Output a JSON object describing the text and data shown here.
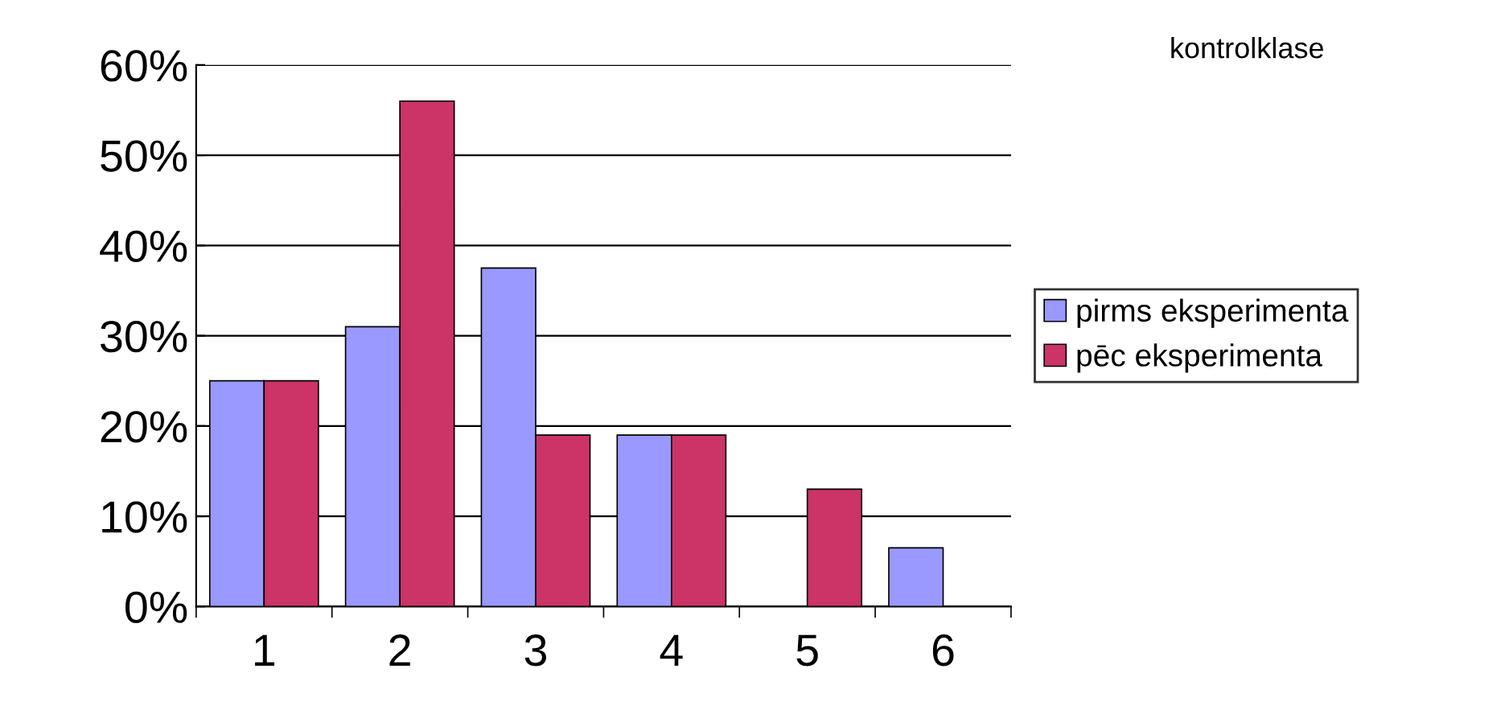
{
  "chart_data": {
    "type": "bar",
    "title": "kontrolklase",
    "categories": [
      "1",
      "2",
      "3",
      "4",
      "5",
      "6"
    ],
    "series": [
      {
        "name": "pirms eksperimenta",
        "color": "#9999ff",
        "values": [
          25,
          31,
          37.5,
          19,
          null,
          6.5
        ]
      },
      {
        "name": "pēc eksperimenta",
        "color": "#cc3366",
        "values": [
          25,
          56,
          19,
          19,
          13,
          null
        ]
      }
    ],
    "ylim": [
      0,
      60
    ],
    "yticks": [
      {
        "value": 0,
        "label": "0%"
      },
      {
        "value": 10,
        "label": "10%"
      },
      {
        "value": 20,
        "label": "20%"
      },
      {
        "value": 30,
        "label": "30%"
      },
      {
        "value": 40,
        "label": "40%"
      },
      {
        "value": 50,
        "label": "50%"
      },
      {
        "value": 60,
        "label": "60%"
      }
    ],
    "grid": "y",
    "legend": "right"
  }
}
